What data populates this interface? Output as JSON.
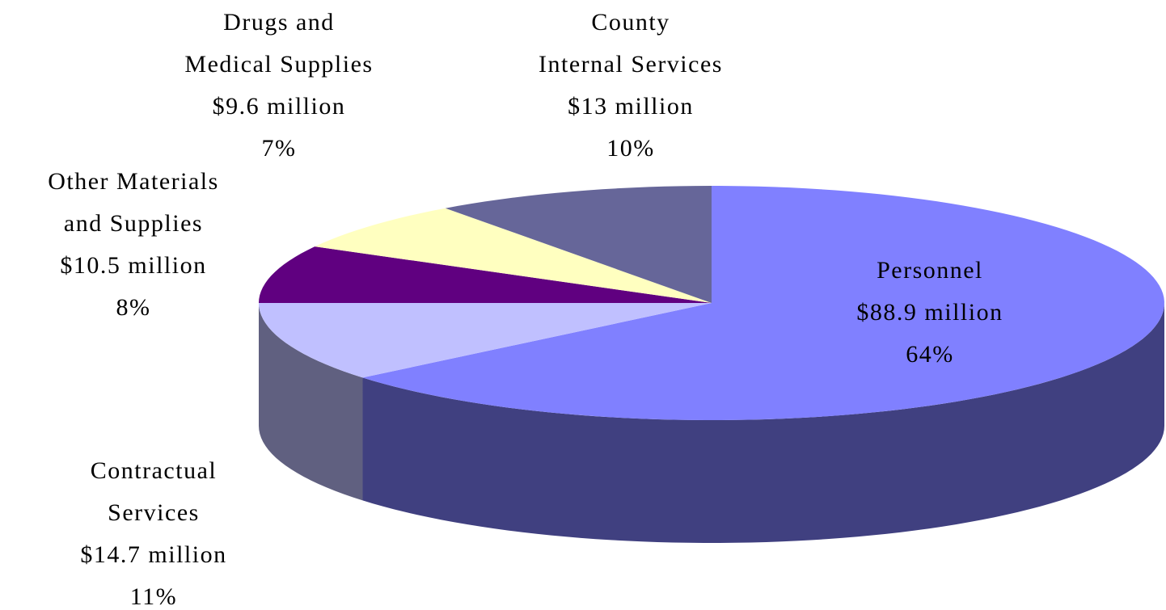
{
  "chart_data": {
    "type": "pie3d",
    "categories": [
      "Personnel",
      "Contractual\nServices",
      "Other Materials\nand Supplies",
      "Drugs and\nMedical Supplies",
      "County\nInternal Services"
    ],
    "amount_labels": [
      "$88.9 million",
      "$14.7 million",
      "$10.5 million",
      "$9.6 million",
      "$13 million"
    ],
    "values": [
      64,
      11,
      8,
      7,
      10
    ],
    "value_labels": [
      "64%",
      "11%",
      "8%",
      "7%",
      "10%"
    ],
    "colors": [
      "#8080ff",
      "#c0c0ff",
      "#600080",
      "#ffffc0",
      "#666699"
    ]
  }
}
